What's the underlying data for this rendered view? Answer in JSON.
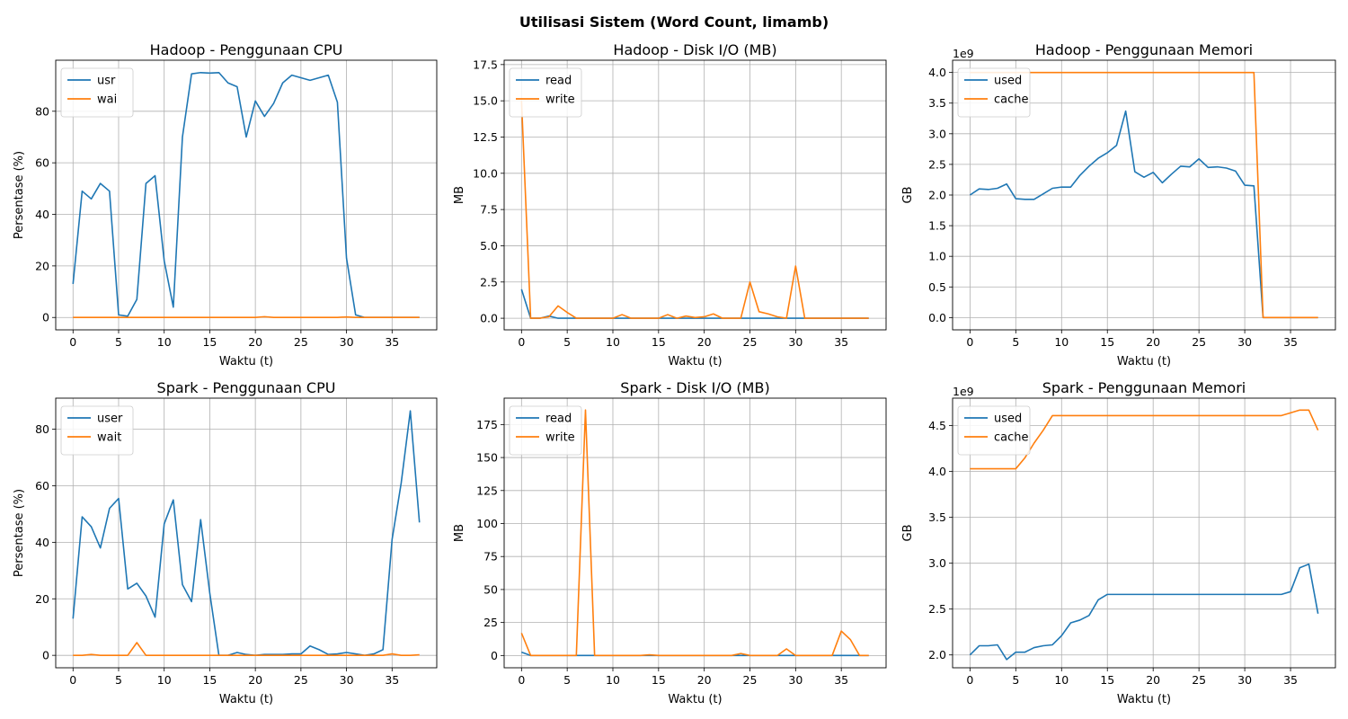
{
  "figure": {
    "title": "Utilisasi Sistem (Word Count, limamb)"
  },
  "colors": {
    "series1": "#1f77b4",
    "series2": "#ff7f0e",
    "grid": "#b0b0b0",
    "axis": "#000000"
  },
  "chart_data": [
    {
      "type": "line",
      "title": "Hadoop - Penggunaan CPU",
      "xlabel": "Waktu (t)",
      "ylabel": "Persentase (%)",
      "xlim": [
        -1.9,
        39.9
      ],
      "ylim": [
        -4.8,
        99.8
      ],
      "xticks": [
        0,
        5,
        10,
        15,
        20,
        25,
        30,
        35
      ],
      "yticks": [
        0,
        20,
        40,
        60,
        80
      ],
      "grid": true,
      "legend": "top-left",
      "offset_label": "",
      "series": [
        {
          "name": "usr",
          "color": "#1f77b4",
          "values": [
            13,
            49,
            46,
            52,
            49,
            1,
            0.5,
            7,
            52,
            55,
            22,
            4,
            70,
            94.5,
            95,
            94.8,
            95,
            91,
            89.5,
            70,
            84,
            78,
            83,
            91,
            94,
            93,
            92,
            93,
            94,
            83.5,
            23,
            1,
            0,
            0,
            0,
            0,
            0,
            0,
            0
          ]
        },
        {
          "name": "wai",
          "color": "#ff7f0e",
          "values": [
            0,
            0,
            0,
            0,
            0,
            0,
            0,
            0,
            0,
            0,
            0,
            0,
            0,
            0,
            0,
            0,
            0,
            0,
            0,
            0,
            0,
            0.3,
            0,
            0,
            0,
            0,
            0,
            0,
            0,
            0,
            0.2,
            0,
            0,
            0,
            0,
            0,
            0,
            0,
            0
          ]
        }
      ]
    },
    {
      "type": "line",
      "title": "Hadoop - Disk I/O (MB)",
      "xlabel": "Waktu (t)",
      "ylabel": "MB",
      "xlim": [
        -1.9,
        39.9
      ],
      "ylim": [
        -0.8,
        17.8
      ],
      "xticks": [
        0,
        5,
        10,
        15,
        20,
        25,
        30,
        35
      ],
      "yticks": [
        0.0,
        2.5,
        5.0,
        7.5,
        10.0,
        12.5,
        15.0,
        17.5
      ],
      "ytick_labels": [
        "0.0",
        "2.5",
        "5.0",
        "7.5",
        "10.0",
        "12.5",
        "15.0",
        "17.5"
      ],
      "grid": true,
      "legend": "top-left",
      "offset_label": "",
      "series": [
        {
          "name": "read",
          "color": "#1f77b4",
          "values": [
            2.0,
            0,
            0,
            0.15,
            0,
            0,
            0,
            0,
            0,
            0,
            0,
            0,
            0,
            0,
            0,
            0,
            0,
            0,
            0,
            0,
            0,
            0,
            0,
            0,
            0,
            0,
            0,
            0,
            0,
            0,
            0,
            0,
            0,
            0,
            0,
            0,
            0,
            0,
            0
          ]
        },
        {
          "name": "write",
          "color": "#ff7f0e",
          "values": [
            15.0,
            0,
            0,
            0.1,
            0.85,
            0.4,
            0,
            0,
            0,
            0,
            0,
            0.25,
            0,
            0,
            0,
            0,
            0.25,
            0,
            0.15,
            0.05,
            0.1,
            0.3,
            0,
            0,
            0,
            2.5,
            0.45,
            0.3,
            0.1,
            0,
            3.6,
            0,
            0,
            0,
            0,
            0,
            0,
            0,
            0
          ]
        }
      ]
    },
    {
      "type": "line",
      "title": "Hadoop - Penggunaan Memori",
      "xlabel": "Waktu (t)",
      "ylabel": "GB",
      "xlim": [
        -1.9,
        39.9
      ],
      "ylim": [
        -0.2,
        4.2
      ],
      "xticks": [
        0,
        5,
        10,
        15,
        20,
        25,
        30,
        35
      ],
      "yticks": [
        0.0,
        0.5,
        1.0,
        1.5,
        2.0,
        2.5,
        3.0,
        3.5,
        4.0
      ],
      "ytick_labels": [
        "0.0",
        "0.5",
        "1.0",
        "1.5",
        "2.0",
        "2.5",
        "3.0",
        "3.5",
        "4.0"
      ],
      "grid": true,
      "legend": "top-left",
      "offset_label": "1e9",
      "series": [
        {
          "name": "used",
          "color": "#1f77b4",
          "values": [
            2.0,
            2.1,
            2.09,
            2.11,
            2.18,
            1.94,
            1.93,
            1.93,
            2.02,
            2.11,
            2.13,
            2.13,
            2.32,
            2.47,
            2.6,
            2.69,
            2.81,
            3.37,
            2.38,
            2.29,
            2.37,
            2.2,
            2.34,
            2.47,
            2.46,
            2.59,
            2.45,
            2.46,
            2.44,
            2.39,
            2.16,
            2.15,
            0,
            0,
            0,
            0,
            0,
            0,
            0
          ]
        },
        {
          "name": "cache",
          "color": "#ff7f0e",
          "values": [
            4.0,
            4.0,
            4.0,
            4.0,
            4.0,
            4.0,
            4.0,
            4.0,
            4.0,
            4.0,
            4.0,
            4.0,
            4.0,
            4.0,
            4.0,
            4.0,
            4.0,
            4.0,
            4.0,
            4.0,
            4.0,
            4.0,
            4.0,
            4.0,
            4.0,
            4.0,
            4.0,
            4.0,
            4.0,
            4.0,
            4.0,
            4.0,
            0,
            0,
            0,
            0,
            0,
            0,
            0
          ]
        }
      ]
    },
    {
      "type": "line",
      "title": "Spark - Penggunaan CPU",
      "xlabel": "Waktu (t)",
      "ylabel": "Persentase (%)",
      "xlim": [
        -1.9,
        39.9
      ],
      "ylim": [
        -4.4,
        91.0
      ],
      "xticks": [
        0,
        5,
        10,
        15,
        20,
        25,
        30,
        35
      ],
      "yticks": [
        0,
        20,
        40,
        60,
        80
      ],
      "grid": true,
      "legend": "top-left",
      "offset_label": "",
      "series": [
        {
          "name": "user",
          "color": "#1f77b4",
          "values": [
            13,
            49,
            45.5,
            38,
            52,
            55.5,
            23.5,
            25.5,
            21,
            13.5,
            46.5,
            55,
            25,
            19,
            48,
            22,
            0,
            0,
            1,
            0.3,
            0,
            0.3,
            0.3,
            0.3,
            0.5,
            0.5,
            3.3,
            2,
            0.3,
            0.5,
            1,
            0.5,
            0,
            0.5,
            2,
            41,
            61,
            86.5,
            47
          ]
        },
        {
          "name": "wait",
          "color": "#ff7f0e",
          "values": [
            0,
            0,
            0.3,
            0,
            0,
            0,
            0,
            4.5,
            0,
            0,
            0,
            0,
            0,
            0,
            0,
            0,
            0,
            0,
            0,
            0,
            0,
            0,
            0,
            0,
            0,
            0,
            0,
            0,
            0,
            0,
            0,
            0,
            0,
            0,
            0,
            0.5,
            0,
            0,
            0.2
          ]
        }
      ]
    },
    {
      "type": "line",
      "title": "Spark - Disk I/O (MB)",
      "xlabel": "Waktu (t)",
      "ylabel": "MB",
      "xlim": [
        -1.9,
        39.9
      ],
      "ylim": [
        -9.3,
        195.0
      ],
      "xticks": [
        0,
        5,
        10,
        15,
        20,
        25,
        30,
        35
      ],
      "yticks": [
        0,
        25,
        50,
        75,
        100,
        125,
        150,
        175
      ],
      "grid": true,
      "legend": "top-left",
      "offset_label": "",
      "series": [
        {
          "name": "read",
          "color": "#1f77b4",
          "values": [
            2.5,
            0,
            0,
            0,
            0,
            0,
            0,
            0,
            0,
            0,
            0,
            0,
            0,
            0,
            0,
            0,
            0,
            0,
            0,
            0,
            0,
            0,
            0,
            0,
            0,
            0,
            0,
            0,
            0,
            0,
            0,
            0,
            0,
            0,
            0,
            0,
            0,
            0,
            0
          ]
        },
        {
          "name": "write",
          "color": "#ff7f0e",
          "values": [
            17,
            0,
            0,
            0,
            0,
            0,
            0,
            186,
            0,
            0,
            0,
            0,
            0,
            0,
            0.5,
            0,
            0,
            0,
            0,
            0,
            0,
            0,
            0,
            0,
            1.5,
            0,
            0,
            0,
            0,
            5,
            0,
            0,
            0,
            0,
            0,
            18.5,
            12,
            0,
            0
          ]
        }
      ]
    },
    {
      "type": "line",
      "title": "Spark - Penggunaan Memori",
      "xlabel": "Waktu (t)",
      "ylabel": "GB",
      "xlim": [
        -1.9,
        39.9
      ],
      "ylim": [
        1.86,
        4.8
      ],
      "xticks": [
        0,
        5,
        10,
        15,
        20,
        25,
        30,
        35
      ],
      "yticks": [
        2.0,
        2.5,
        3.0,
        3.5,
        4.0,
        4.5
      ],
      "ytick_labels": [
        "2.0",
        "2.5",
        "3.0",
        "3.5",
        "4.0",
        "4.5"
      ],
      "grid": true,
      "legend": "top-left",
      "offset_label": "1e9",
      "series": [
        {
          "name": "used",
          "color": "#1f77b4",
          "values": [
            2.0,
            2.1,
            2.1,
            2.11,
            1.95,
            2.03,
            2.03,
            2.08,
            2.1,
            2.11,
            2.21,
            2.35,
            2.38,
            2.43,
            2.6,
            2.66,
            2.66,
            2.66,
            2.66,
            2.66,
            2.66,
            2.66,
            2.66,
            2.66,
            2.66,
            2.66,
            2.66,
            2.66,
            2.66,
            2.66,
            2.66,
            2.66,
            2.66,
            2.66,
            2.66,
            2.69,
            2.95,
            2.99,
            2.45
          ]
        },
        {
          "name": "cache",
          "color": "#ff7f0e",
          "values": [
            4.03,
            4.03,
            4.03,
            4.03,
            4.03,
            4.03,
            4.15,
            4.31,
            4.45,
            4.61,
            4.61,
            4.61,
            4.61,
            4.61,
            4.61,
            4.61,
            4.61,
            4.61,
            4.61,
            4.61,
            4.61,
            4.61,
            4.61,
            4.61,
            4.61,
            4.61,
            4.61,
            4.61,
            4.61,
            4.61,
            4.61,
            4.61,
            4.61,
            4.61,
            4.61,
            4.64,
            4.67,
            4.67,
            4.45
          ]
        }
      ]
    }
  ]
}
